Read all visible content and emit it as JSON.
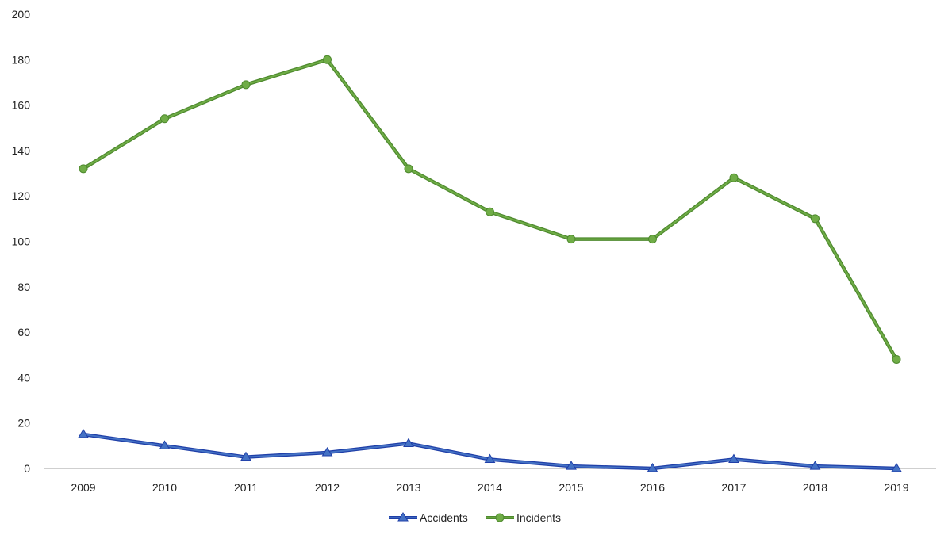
{
  "chart_data": {
    "type": "line",
    "title": "",
    "xlabel": "",
    "ylabel": "",
    "categories": [
      "2009",
      "2010",
      "2011",
      "2012",
      "2013",
      "2014",
      "2015",
      "2016",
      "2017",
      "2018",
      "2019"
    ],
    "ylim": [
      0,
      200
    ],
    "yticks": [
      0,
      20,
      40,
      60,
      80,
      100,
      120,
      140,
      160,
      180,
      200
    ],
    "grid": false,
    "legend_position": "bottom",
    "series": [
      {
        "name": "Accidents",
        "color": "#4472C4",
        "marker": "triangle",
        "values": [
          15,
          10,
          5,
          7,
          11,
          4,
          1,
          0,
          4,
          1,
          0
        ]
      },
      {
        "name": "Incidents",
        "color": "#70AD47",
        "marker": "circle",
        "values": [
          132,
          154,
          169,
          180,
          132,
          113,
          101,
          101,
          128,
          110,
          48
        ]
      }
    ]
  }
}
